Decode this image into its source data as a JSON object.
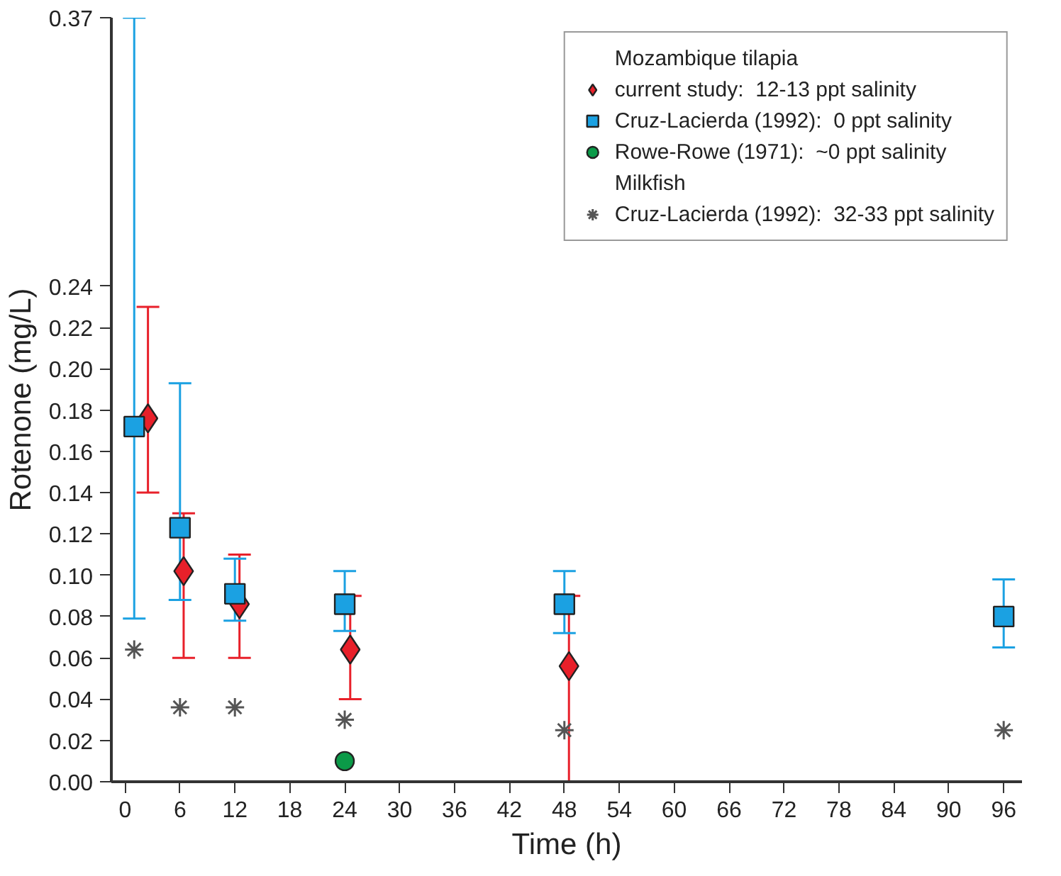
{
  "chart_data": {
    "type": "scatter",
    "xlabel": "Time (h)",
    "ylabel": "Rotenone (mg/L)",
    "legend_title": "Mozambique tilapia",
    "annotations": [
      "Milkfish"
    ],
    "xlim": [
      -1.5,
      98
    ],
    "xticks": [
      0,
      6,
      12,
      18,
      24,
      30,
      36,
      42,
      48,
      54,
      60,
      66,
      72,
      78,
      84,
      90,
      96
    ],
    "ylim": [
      0,
      0.37
    ],
    "yticks": [
      {
        "value": 0,
        "label": "0.00"
      },
      {
        "value": 0.02,
        "label": "0.02"
      },
      {
        "value": 0.04,
        "label": "0.04"
      },
      {
        "value": 0.06,
        "label": "0.06"
      },
      {
        "value": 0.08,
        "label": "0.08"
      },
      {
        "value": 0.1,
        "label": "0.10"
      },
      {
        "value": 0.12,
        "label": "0.12"
      },
      {
        "value": 0.14,
        "label": "0.14"
      },
      {
        "value": 0.16,
        "label": "0.16"
      },
      {
        "value": 0.18,
        "label": "0.18"
      },
      {
        "value": 0.2,
        "label": "0.20"
      },
      {
        "value": 0.22,
        "label": "0.22"
      },
      {
        "value": 0.24,
        "label": "0.24"
      },
      0.37
    ],
    "grid": false,
    "legend": "top right",
    "series": [
      {
        "name": "current study:  12-13 ppt salinity",
        "color": "#e8202a",
        "marker": "diamond",
        "x": [
          2.5,
          6.4,
          12.5,
          24.6,
          48.5
        ],
        "values": [
          0.176,
          0.102,
          0.086,
          0.064,
          0.056
        ],
        "errors": [
          [
            0.14,
            0.23
          ],
          [
            0.06,
            0.13
          ],
          [
            0.06,
            0.11
          ],
          [
            0.04,
            0.09
          ],
          [
            0.0,
            0.09
          ]
        ]
      },
      {
        "name": "Cruz-Lacierda (1992):  0 ppt salinity",
        "color": "#1ba1e2",
        "marker": "square",
        "x": [
          1,
          6,
          12,
          24,
          48,
          96
        ],
        "values": [
          0.172,
          0.123,
          0.091,
          0.086,
          0.086,
          0.08
        ],
        "errors": [
          [
            0.079,
            0.37
          ],
          [
            0.088,
            0.193
          ],
          [
            0.078,
            0.108
          ],
          [
            0.073,
            0.102
          ],
          [
            0.072,
            0.102
          ],
          [
            0.065,
            0.098
          ]
        ]
      },
      {
        "name": "Rowe-Rowe (1971):  ~0 ppt salinity",
        "color": "#0b9a48",
        "marker": "circle",
        "x": [
          24
        ],
        "values": [
          0.01
        ]
      },
      {
        "name": "Cruz-Lacierda (1992):  32-33 ppt salinity",
        "color": "#555555",
        "marker": "cross",
        "x": [
          1,
          6,
          12,
          24,
          48,
          96
        ],
        "values": [
          0.064,
          0.036,
          0.036,
          0.03,
          0.025,
          0.025
        ]
      }
    ]
  }
}
